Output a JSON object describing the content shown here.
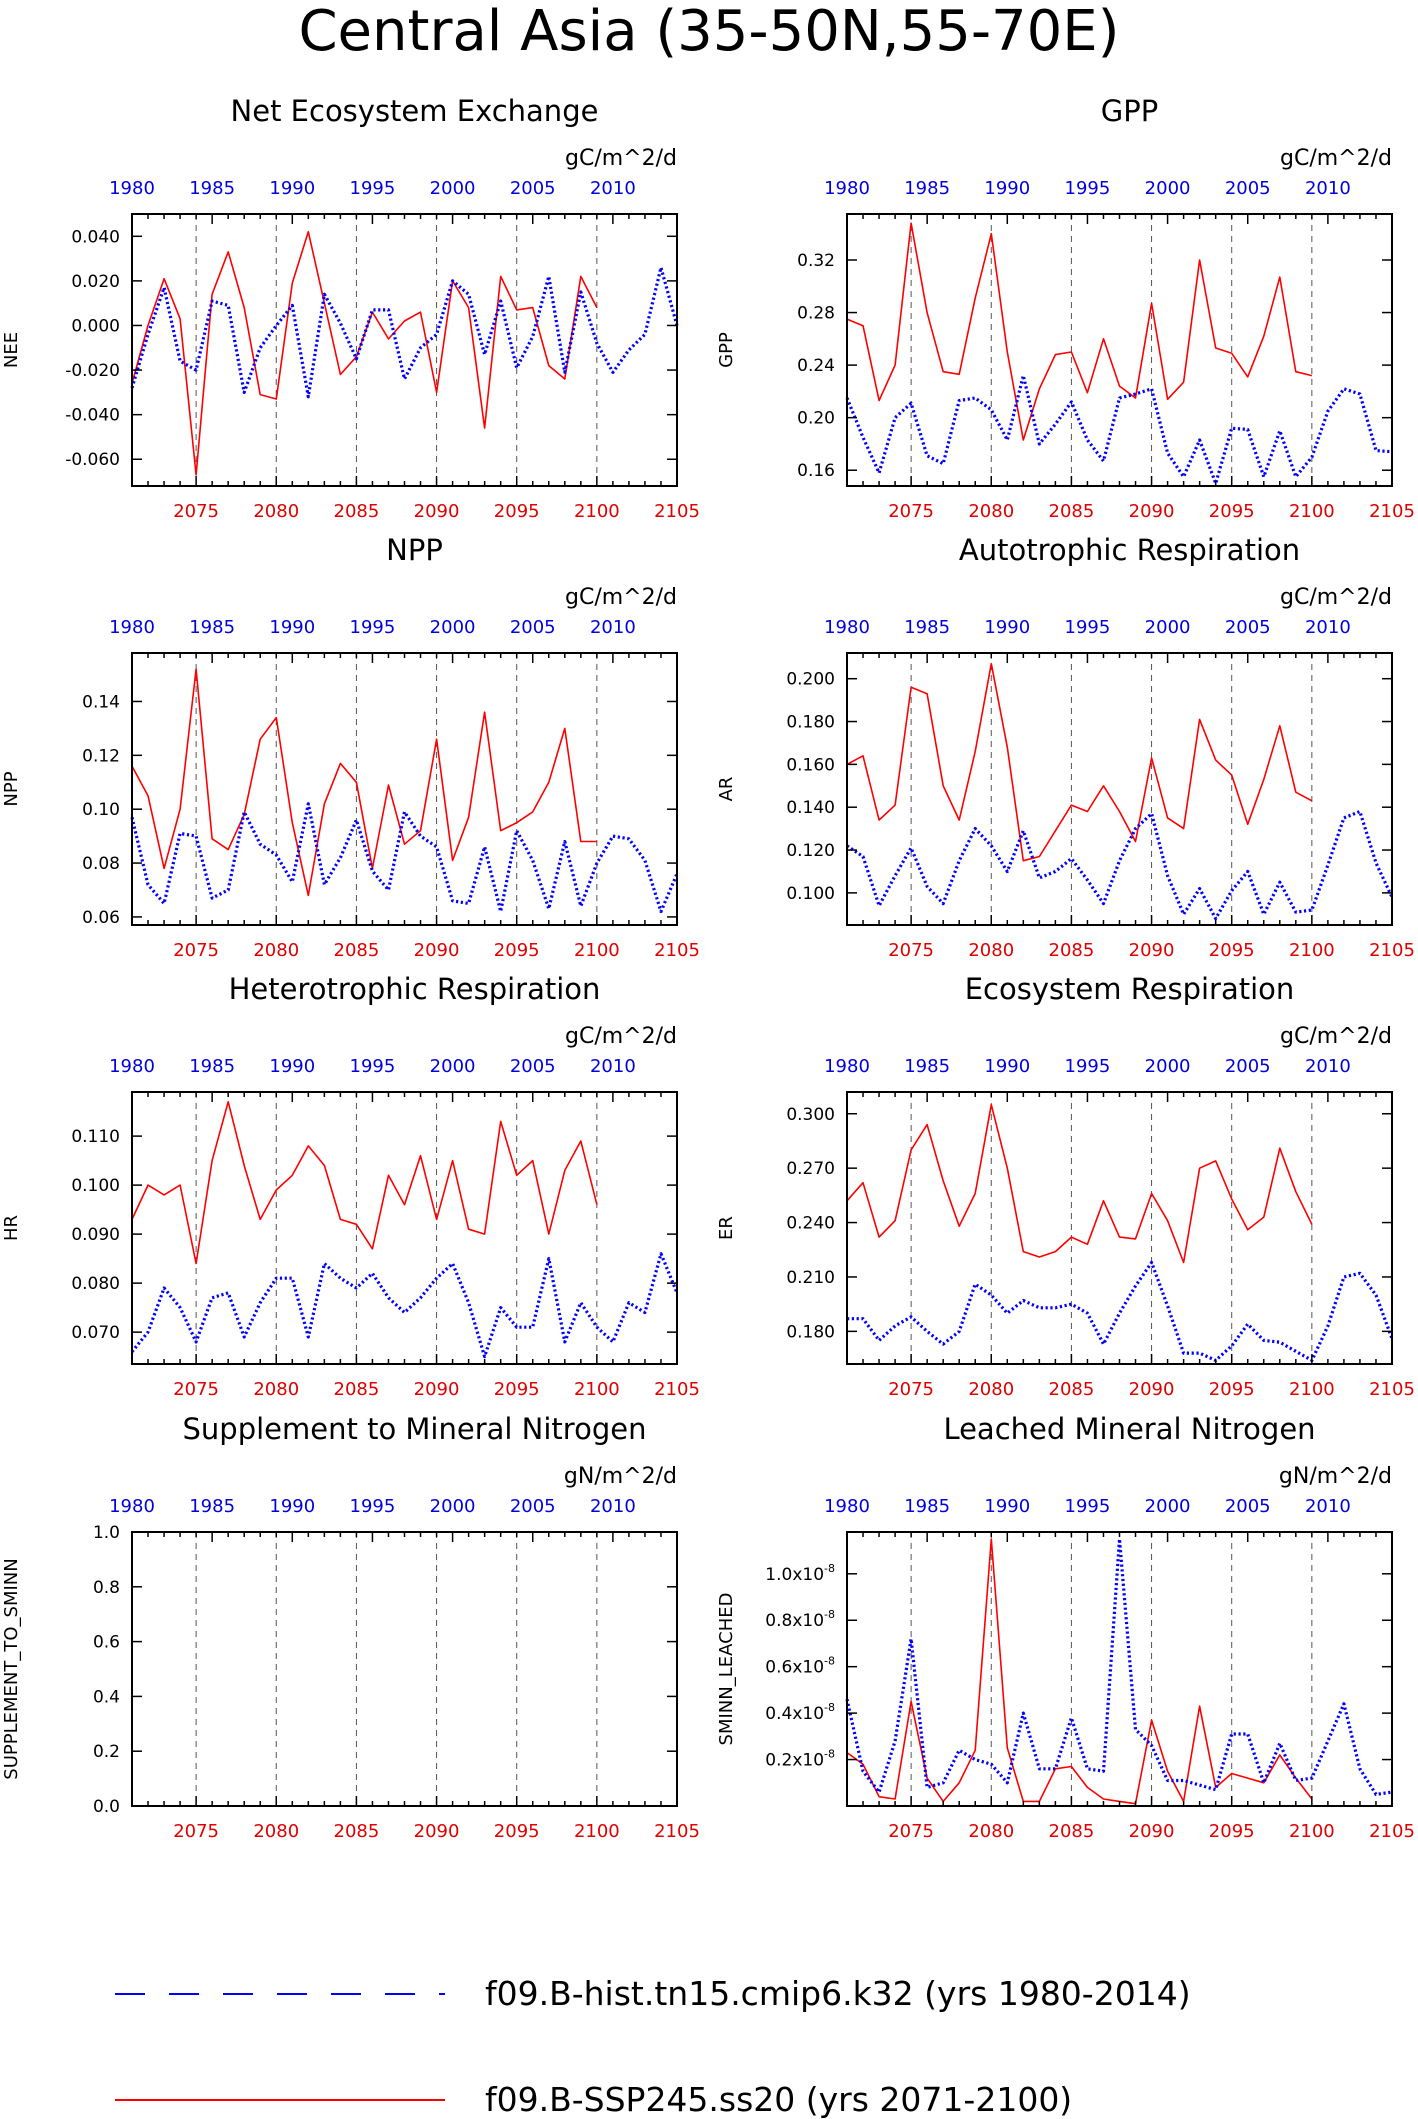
{
  "title": "Central Asia (35-50N,55-70E)",
  "legend": [
    {
      "label": "f09.B-hist.tn15.cmip6.k32 (yrs 1980-2014)",
      "color": "#0000ff",
      "style": "dotted"
    },
    {
      "label": "f09.B-SSP245.ss20 (yrs 2071-2100)",
      "color": "#ff0000",
      "style": "solid"
    }
  ],
  "chart_data": [
    {
      "type": "line",
      "title": "Net Ecosystem Exchange",
      "units": "gC/m^2/d",
      "ylabel": "NEE",
      "ylim": [
        -0.072,
        0.05
      ],
      "yticks": [
        -0.06,
        -0.04,
        -0.02,
        0.0,
        0.02,
        0.04
      ],
      "ytick_labels": [
        "-0.060",
        "-0.040",
        "-0.020",
        "0.000",
        "0.020",
        "0.040"
      ],
      "x_bottom": {
        "lim": [
          2071,
          2105
        ],
        "ticks": [
          2075,
          2080,
          2085,
          2090,
          2095,
          2100,
          2105
        ],
        "color": "#ff0000"
      },
      "x_top": {
        "lim": [
          1980,
          2014
        ],
        "ticks": [
          1980,
          1985,
          1990,
          1995,
          2000,
          2005,
          2010
        ],
        "color": "#0000ff"
      },
      "series": [
        {
          "name": "f09.B-SSP245.ss20 (yrs 2071-2100)",
          "x_start": 2071,
          "values": [
            -0.026,
            0.0,
            0.021,
            0.003,
            -0.067,
            0.014,
            0.033,
            0.008,
            -0.031,
            -0.033,
            0.019,
            0.042,
            0.01,
            -0.022,
            -0.014,
            0.006,
            -0.006,
            0.002,
            0.006,
            -0.03,
            0.02,
            0.008,
            -0.046,
            0.022,
            0.007,
            0.008,
            -0.018,
            -0.024,
            0.022,
            0.008
          ]
        },
        {
          "name": "f09.B-hist.tn15.cmip6.k32 (yrs 1980-2014)",
          "x_start": 2071,
          "values": [
            -0.028,
            -0.004,
            0.017,
            -0.016,
            -0.02,
            0.011,
            0.009,
            -0.03,
            -0.01,
            0.0,
            0.009,
            -0.032,
            0.014,
            0.001,
            -0.015,
            0.007,
            0.007,
            -0.024,
            -0.01,
            -0.004,
            0.02,
            0.014,
            -0.013,
            0.011,
            -0.019,
            -0.005,
            0.022,
            -0.021,
            0.015,
            -0.008,
            -0.021,
            -0.011,
            -0.004,
            0.026,
            0.0
          ]
        }
      ]
    },
    {
      "type": "line",
      "title": "GPP",
      "units": "gC/m^2/d",
      "ylabel": "GPP",
      "ylim": [
        0.148,
        0.355
      ],
      "yticks": [
        0.16,
        0.2,
        0.24,
        0.28,
        0.32
      ],
      "ytick_labels": [
        "0.16",
        "0.20",
        "0.24",
        "0.28",
        "0.32"
      ],
      "x_bottom": {
        "lim": [
          2071,
          2105
        ],
        "ticks": [
          2075,
          2080,
          2085,
          2090,
          2095,
          2100,
          2105
        ],
        "color": "#ff0000"
      },
      "x_top": {
        "lim": [
          1980,
          2014
        ],
        "ticks": [
          1980,
          1985,
          1990,
          1995,
          2000,
          2005,
          2010
        ],
        "color": "#0000ff"
      },
      "series": [
        {
          "name": "f09.B-SSP245.ss20 (yrs 2071-2100)",
          "x_start": 2071,
          "values": [
            0.275,
            0.27,
            0.213,
            0.24,
            0.348,
            0.28,
            0.235,
            0.233,
            0.291,
            0.34,
            0.25,
            0.183,
            0.222,
            0.248,
            0.25,
            0.219,
            0.26,
            0.224,
            0.215,
            0.287,
            0.214,
            0.227,
            0.32,
            0.253,
            0.249,
            0.231,
            0.262,
            0.307,
            0.235,
            0.232
          ]
        },
        {
          "name": "f09.B-hist.tn15.cmip6.k32 (yrs 1980-2014)",
          "x_start": 2071,
          "values": [
            0.215,
            0.185,
            0.158,
            0.2,
            0.211,
            0.171,
            0.165,
            0.213,
            0.215,
            0.206,
            0.183,
            0.232,
            0.18,
            0.195,
            0.212,
            0.183,
            0.167,
            0.215,
            0.218,
            0.222,
            0.173,
            0.155,
            0.183,
            0.15,
            0.192,
            0.191,
            0.155,
            0.19,
            0.155,
            0.17,
            0.205,
            0.222,
            0.218,
            0.175,
            0.174
          ]
        }
      ]
    },
    {
      "type": "line",
      "title": "NPP",
      "units": "gC/m^2/d",
      "ylabel": "NPP",
      "ylim": [
        0.057,
        0.158
      ],
      "yticks": [
        0.06,
        0.08,
        0.1,
        0.12,
        0.14
      ],
      "ytick_labels": [
        "0.06",
        "0.08",
        "0.10",
        "0.12",
        "0.14"
      ],
      "x_bottom": {
        "lim": [
          2071,
          2105
        ],
        "ticks": [
          2075,
          2080,
          2085,
          2090,
          2095,
          2100,
          2105
        ],
        "color": "#ff0000"
      },
      "x_top": {
        "lim": [
          1980,
          2014
        ],
        "ticks": [
          1980,
          1985,
          1990,
          1995,
          2000,
          2005,
          2010
        ],
        "color": "#0000ff"
      },
      "series": [
        {
          "name": "f09.B-SSP245.ss20 (yrs 2071-2100)",
          "x_start": 2071,
          "values": [
            0.116,
            0.105,
            0.078,
            0.1,
            0.152,
            0.089,
            0.085,
            0.098,
            0.126,
            0.134,
            0.095,
            0.068,
            0.102,
            0.117,
            0.11,
            0.078,
            0.109,
            0.087,
            0.092,
            0.126,
            0.081,
            0.097,
            0.136,
            0.092,
            0.095,
            0.099,
            0.11,
            0.13,
            0.088,
            0.088
          ]
        },
        {
          "name": "f09.B-hist.tn15.cmip6.k32 (yrs 1980-2014)",
          "x_start": 2071,
          "values": [
            0.097,
            0.072,
            0.065,
            0.091,
            0.09,
            0.067,
            0.07,
            0.099,
            0.087,
            0.083,
            0.073,
            0.102,
            0.072,
            0.082,
            0.096,
            0.077,
            0.07,
            0.099,
            0.09,
            0.086,
            0.066,
            0.065,
            0.086,
            0.062,
            0.092,
            0.081,
            0.063,
            0.088,
            0.064,
            0.08,
            0.09,
            0.089,
            0.081,
            0.062,
            0.076
          ]
        }
      ]
    },
    {
      "type": "line",
      "title": "Autotrophic Respiration",
      "units": "gC/m^2/d",
      "ylabel": "AR",
      "ylim": [
        0.085,
        0.212
      ],
      "yticks": [
        0.1,
        0.12,
        0.14,
        0.16,
        0.18,
        0.2
      ],
      "ytick_labels": [
        "0.100",
        "0.120",
        "0.140",
        "0.160",
        "0.180",
        "0.200"
      ],
      "x_bottom": {
        "lim": [
          2071,
          2105
        ],
        "ticks": [
          2075,
          2080,
          2085,
          2090,
          2095,
          2100,
          2105
        ],
        "color": "#ff0000"
      },
      "x_top": {
        "lim": [
          1980,
          2014
        ],
        "ticks": [
          1980,
          1985,
          1990,
          1995,
          2000,
          2005,
          2010
        ],
        "color": "#0000ff"
      },
      "series": [
        {
          "name": "f09.B-SSP245.ss20 (yrs 2071-2100)",
          "x_start": 2071,
          "values": [
            0.16,
            0.164,
            0.134,
            0.141,
            0.196,
            0.193,
            0.15,
            0.134,
            0.166,
            0.207,
            0.168,
            0.115,
            0.117,
            0.129,
            0.141,
            0.138,
            0.15,
            0.138,
            0.124,
            0.163,
            0.135,
            0.13,
            0.181,
            0.162,
            0.155,
            0.132,
            0.153,
            0.178,
            0.147,
            0.143
          ]
        },
        {
          "name": "f09.B-hist.tn15.cmip6.k32 (yrs 1980-2014)",
          "x_start": 2071,
          "values": [
            0.122,
            0.117,
            0.094,
            0.108,
            0.121,
            0.103,
            0.095,
            0.115,
            0.13,
            0.122,
            0.11,
            0.129,
            0.107,
            0.11,
            0.116,
            0.106,
            0.095,
            0.115,
            0.13,
            0.137,
            0.108,
            0.09,
            0.102,
            0.088,
            0.101,
            0.11,
            0.09,
            0.105,
            0.091,
            0.092,
            0.113,
            0.135,
            0.138,
            0.114,
            0.098
          ]
        }
      ]
    },
    {
      "type": "line",
      "title": "Heterotrophic Respiration",
      "units": "gC/m^2/d",
      "ylabel": "HR",
      "ylim": [
        0.0635,
        0.119
      ],
      "yticks": [
        0.07,
        0.08,
        0.09,
        0.1,
        0.11
      ],
      "ytick_labels": [
        "0.070",
        "0.080",
        "0.090",
        "0.100",
        "0.110"
      ],
      "x_bottom": {
        "lim": [
          2071,
          2105
        ],
        "ticks": [
          2075,
          2080,
          2085,
          2090,
          2095,
          2100,
          2105
        ],
        "color": "#ff0000"
      },
      "x_top": {
        "lim": [
          1980,
          2014
        ],
        "ticks": [
          1980,
          1985,
          1990,
          1995,
          2000,
          2005,
          2010
        ],
        "color": "#0000ff"
      },
      "series": [
        {
          "name": "f09.B-SSP245.ss20 (yrs 2071-2100)",
          "x_start": 2071,
          "values": [
            0.093,
            0.1,
            0.098,
            0.1,
            0.084,
            0.105,
            0.117,
            0.104,
            0.093,
            0.099,
            0.102,
            0.108,
            0.104,
            0.093,
            0.092,
            0.087,
            0.102,
            0.096,
            0.106,
            0.093,
            0.105,
            0.091,
            0.09,
            0.113,
            0.102,
            0.105,
            0.09,
            0.103,
            0.109,
            0.096
          ]
        },
        {
          "name": "f09.B-hist.tn15.cmip6.k32 (yrs 1980-2014)",
          "x_start": 2071,
          "values": [
            0.066,
            0.07,
            0.079,
            0.075,
            0.068,
            0.077,
            0.078,
            0.069,
            0.076,
            0.081,
            0.081,
            0.069,
            0.084,
            0.081,
            0.079,
            0.082,
            0.077,
            0.074,
            0.077,
            0.081,
            0.084,
            0.076,
            0.065,
            0.075,
            0.071,
            0.071,
            0.085,
            0.068,
            0.076,
            0.071,
            0.068,
            0.076,
            0.074,
            0.086,
            0.078
          ]
        }
      ]
    },
    {
      "type": "line",
      "title": "Ecosystem Respiration",
      "units": "gC/m^2/d",
      "ylabel": "ER",
      "ylim": [
        0.162,
        0.312
      ],
      "yticks": [
        0.18,
        0.21,
        0.24,
        0.27,
        0.3
      ],
      "ytick_labels": [
        "0.180",
        "0.210",
        "0.240",
        "0.270",
        "0.300"
      ],
      "x_bottom": {
        "lim": [
          2071,
          2105
        ],
        "ticks": [
          2075,
          2080,
          2085,
          2090,
          2095,
          2100,
          2105
        ],
        "color": "#ff0000"
      },
      "x_top": {
        "lim": [
          1980,
          2014
        ],
        "ticks": [
          1980,
          1985,
          1990,
          1995,
          2000,
          2005,
          2010
        ],
        "color": "#0000ff"
      },
      "series": [
        {
          "name": "f09.B-SSP245.ss20 (yrs 2071-2100)",
          "x_start": 2071,
          "values": [
            0.252,
            0.262,
            0.232,
            0.241,
            0.28,
            0.294,
            0.263,
            0.238,
            0.256,
            0.305,
            0.27,
            0.224,
            0.221,
            0.224,
            0.232,
            0.228,
            0.252,
            0.232,
            0.231,
            0.256,
            0.241,
            0.218,
            0.27,
            0.274,
            0.253,
            0.236,
            0.243,
            0.281,
            0.257,
            0.239
          ]
        },
        {
          "name": "f09.B-hist.tn15.cmip6.k32 (yrs 1980-2014)",
          "x_start": 2071,
          "values": [
            0.187,
            0.187,
            0.175,
            0.183,
            0.188,
            0.18,
            0.173,
            0.18,
            0.206,
            0.2,
            0.19,
            0.197,
            0.193,
            0.193,
            0.195,
            0.19,
            0.173,
            0.19,
            0.205,
            0.218,
            0.194,
            0.168,
            0.168,
            0.164,
            0.172,
            0.184,
            0.175,
            0.174,
            0.169,
            0.164,
            0.183,
            0.21,
            0.212,
            0.2,
            0.176
          ]
        }
      ]
    },
    {
      "type": "line",
      "title": "Supplement to Mineral Nitrogen",
      "units": "gN/m^2/d",
      "ylabel": "SUPPLEMENT_TO_SMINN",
      "ylim": [
        0.0,
        1.0
      ],
      "yticks": [
        0.0,
        0.2,
        0.4,
        0.6,
        0.8,
        1.0
      ],
      "ytick_labels": [
        "0.0",
        "0.2",
        "0.4",
        "0.6",
        "0.8",
        "1.0"
      ],
      "x_bottom": {
        "lim": [
          2071,
          2105
        ],
        "ticks": [
          2075,
          2080,
          2085,
          2090,
          2095,
          2100,
          2105
        ],
        "color": "#ff0000"
      },
      "x_top": {
        "lim": [
          1980,
          2014
        ],
        "ticks": [
          1980,
          1985,
          1990,
          1995,
          2000,
          2005,
          2010
        ],
        "color": "#0000ff"
      },
      "series": []
    },
    {
      "type": "line",
      "title": "Leached Mineral Nitrogen",
      "units": "gN/m^2/d",
      "ylabel": "SMINN_LEACHED",
      "ylim": [
        0.0,
        1.18e-08
      ],
      "yticks": [
        2e-09,
        4e-09,
        6e-09,
        8e-09,
        1e-08
      ],
      "ytick_labels": [
        "0.2x10-8",
        "0.4x10-8",
        "0.6x10-8",
        "0.8x10-8",
        "1.0x10-8"
      ],
      "x_bottom": {
        "lim": [
          2071,
          2105
        ],
        "ticks": [
          2075,
          2080,
          2085,
          2090,
          2095,
          2100,
          2105
        ],
        "color": "#ff0000"
      },
      "x_top": {
        "lim": [
          1980,
          2014
        ],
        "ticks": [
          1980,
          1985,
          1990,
          1995,
          2000,
          2005,
          2010
        ],
        "color": "#0000ff"
      },
      "series": [
        {
          "name": "f09.B-SSP245.ss20 (yrs 2071-2100)",
          "x_start": 2071,
          "values": [
            2.3e-09,
            1.8e-09,
            4e-10,
            3e-10,
            4.5e-09,
            1.2e-09,
            2e-10,
            1e-09,
            2.4e-09,
            1.15e-08,
            2.5e-09,
            2e-10,
            2e-10,
            1.6e-09,
            1.7e-09,
            8e-10,
            3e-10,
            2e-10,
            1e-10,
            3.7e-09,
            1.5e-09,
            2e-10,
            4.3e-09,
            8e-10,
            1.4e-09,
            1.2e-09,
            1e-09,
            2.2e-09,
            1.2e-09,
            3e-10
          ]
        },
        {
          "name": "f09.B-hist.tn15.cmip6.k32 (yrs 1980-2014)",
          "x_start": 2071,
          "values": [
            4.6e-09,
            1.5e-09,
            6e-10,
            2.8e-09,
            7.2e-09,
            8e-10,
            1e-09,
            2.4e-09,
            2e-09,
            1.8e-09,
            1e-09,
            4e-09,
            1.6e-09,
            1.6e-09,
            3.8e-09,
            1.6e-09,
            1.5e-09,
            1.15e-08,
            3.3e-09,
            2.6e-09,
            1.1e-09,
            1.1e-09,
            9e-10,
            7e-10,
            3.1e-09,
            3.1e-09,
            1e-09,
            2.7e-09,
            1.1e-09,
            1.2e-09,
            2.8e-09,
            4.4e-09,
            1.6e-09,
            5e-10,
            6e-10
          ]
        }
      ]
    }
  ]
}
